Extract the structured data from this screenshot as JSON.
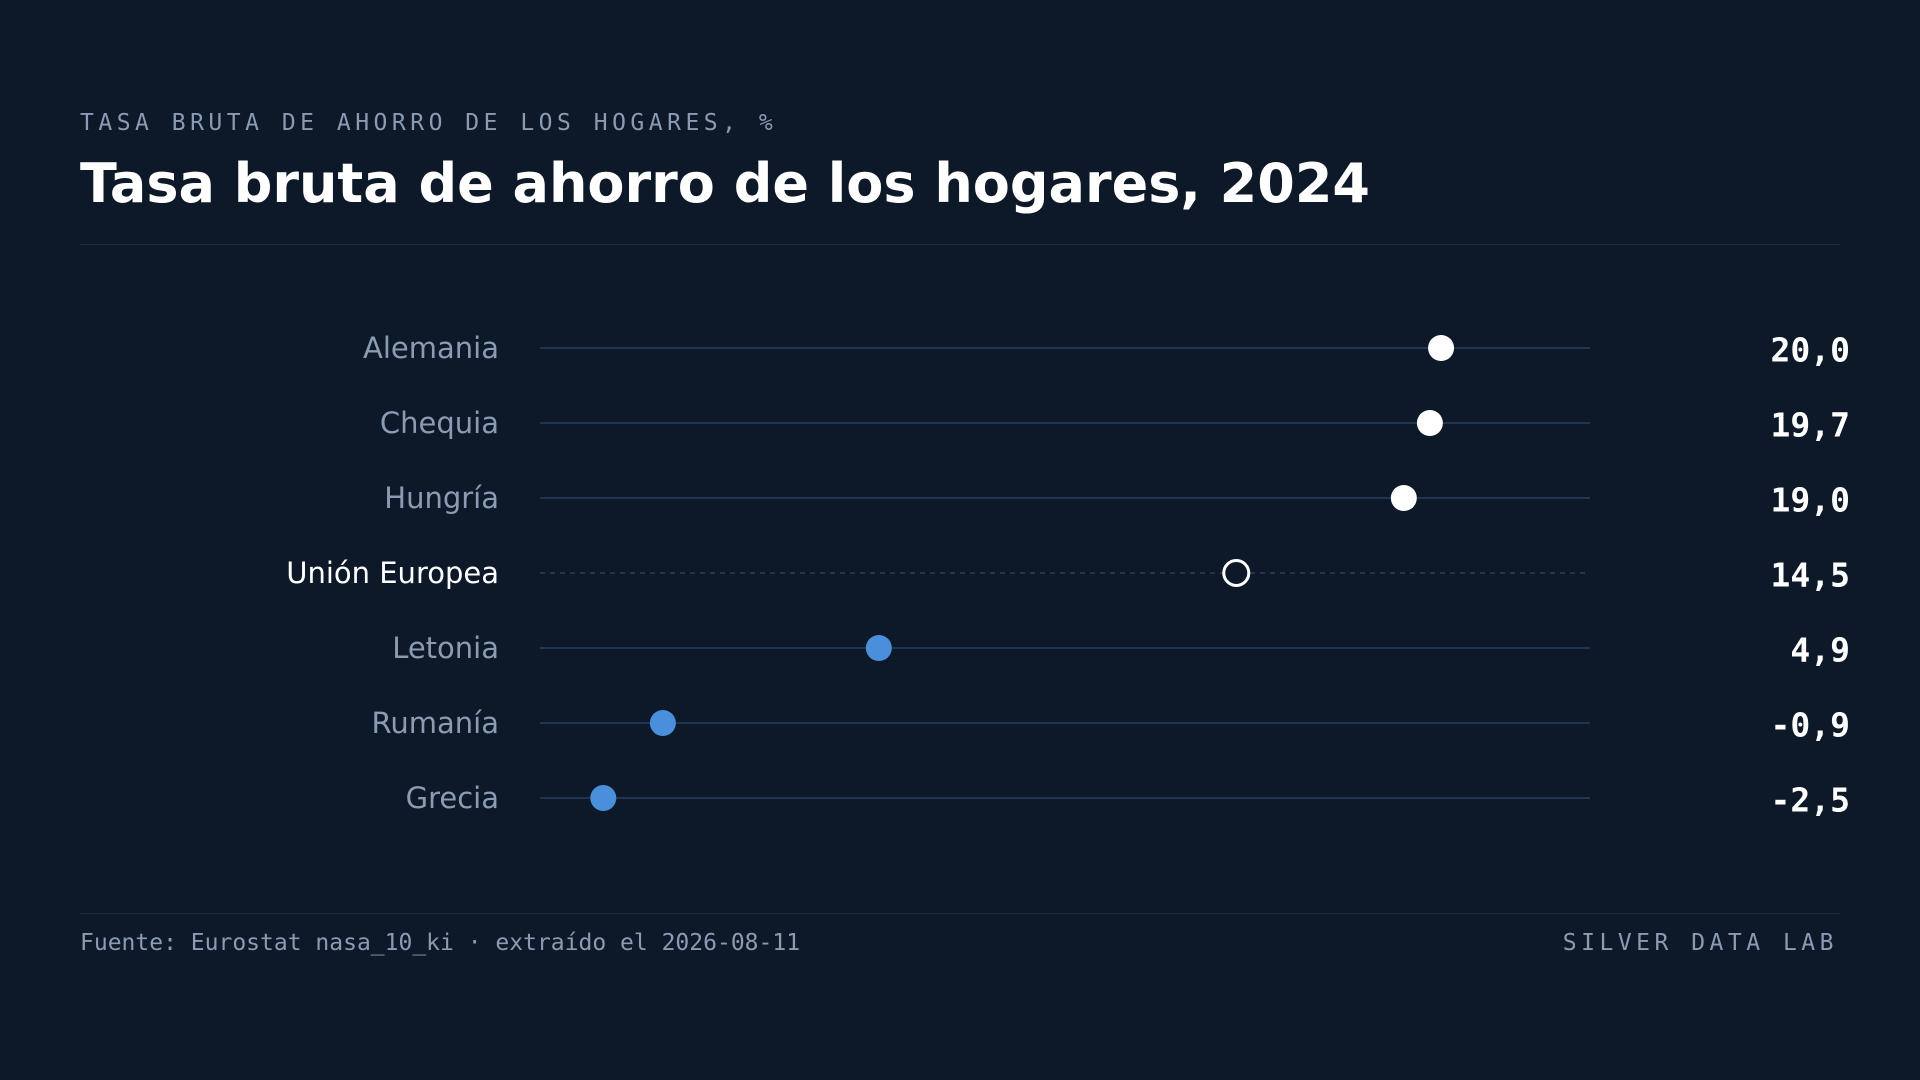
{
  "header": {
    "eyebrow": "TASA BRUTA DE AHORRO DE LOS HOGARES, %",
    "title": "Tasa bruta de ahorro de los hogares, 2024"
  },
  "footer": {
    "source": "Fuente: Eurostat nasa_10_ki · extraído el 2026-08-11",
    "brand": "SILVER DATA LAB"
  },
  "colors": {
    "background": "#0d1929",
    "top_group": "#ffffff",
    "bottom_group": "#4a8fdb",
    "reference": "#ffffff",
    "label": "#8b9bb3",
    "reference_label": "#ffffff",
    "value": "#ffffff"
  },
  "chart_data": {
    "type": "dot",
    "xlim": [
      -4.2,
      24.0
    ],
    "grid": false,
    "categories": [
      "Alemania",
      "Chequia",
      "Hungría",
      "Unión Europea",
      "Letonia",
      "Rumanía",
      "Grecia"
    ],
    "values": [
      20.0,
      19.7,
      19.0,
      14.5,
      4.9,
      -0.9,
      -2.5
    ],
    "value_labels": [
      "20,0",
      "19,7",
      "19,0",
      "14,5",
      "4,9",
      "-0,9",
      "-2,5"
    ],
    "groups": [
      "top",
      "top",
      "top",
      "reference",
      "bottom",
      "bottom",
      "bottom"
    ]
  }
}
